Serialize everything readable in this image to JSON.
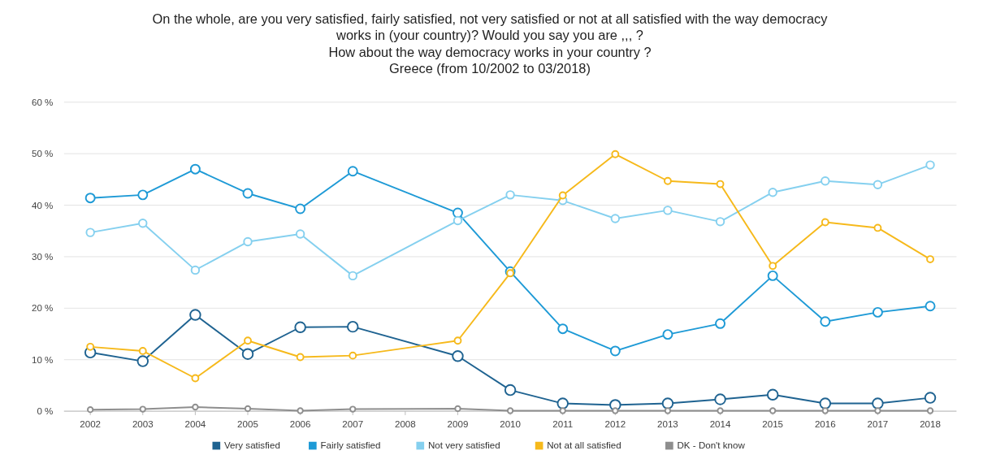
{
  "chart_data": {
    "type": "line",
    "title": "On the whole, are you very satisfied, fairly satisfied, not very satisfied or not at all satisfied with the way democracy\nworks in (your country)? Would you say you are ,,, ?\nHow about the way democracy works in your country ?",
    "subtitle": "Greece (from 10/2002 to 03/2018)",
    "x": [
      2002,
      2003,
      2004,
      2005,
      2006,
      2007,
      2009,
      2010,
      2011,
      2012,
      2013,
      2014,
      2015,
      2016,
      2017,
      2018
    ],
    "xlim": [
      2001.5,
      2018.5
    ],
    "xticks": [
      2002,
      2003,
      2004,
      2005,
      2006,
      2007,
      2008,
      2009,
      2010,
      2011,
      2012,
      2013,
      2014,
      2015,
      2016,
      2017,
      2018
    ],
    "ylim": [
      0,
      60
    ],
    "yticks": [
      {
        "value": 0,
        "label": "0 %"
      },
      {
        "value": 10,
        "label": "10 %"
      },
      {
        "value": 20,
        "label": "20 %"
      },
      {
        "value": 30,
        "label": "30 %"
      },
      {
        "value": 40,
        "label": "40 %"
      },
      {
        "value": 50,
        "label": "50 %"
      },
      {
        "value": 60,
        "label": "60 %"
      }
    ],
    "grid": "y",
    "legend": "bottom",
    "marker": "circle",
    "line_style": "solid",
    "series": [
      {
        "name": "Very satisfied",
        "color": "#1f6391",
        "values": [
          11.4,
          9.7,
          18.7,
          11.1,
          16.3,
          16.4,
          10.7,
          4.1,
          1.5,
          1.2,
          1.5,
          2.3,
          3.2,
          1.5,
          1.5,
          2.6
        ]
      },
      {
        "name": "Fairly satisfied",
        "color": "#1e9ad6",
        "values": [
          41.4,
          42.0,
          47.0,
          42.3,
          39.3,
          46.6,
          38.5,
          27.1,
          16.0,
          11.7,
          14.9,
          17.0,
          26.3,
          17.4,
          19.2,
          20.4
        ]
      },
      {
        "name": "Not very satisfied",
        "color": "#85d0ef",
        "values": [
          34.7,
          36.5,
          27.4,
          32.9,
          34.4,
          26.3,
          37.0,
          42.0,
          40.9,
          37.4,
          39.0,
          36.8,
          42.5,
          44.7,
          44.0,
          47.8
        ]
      },
      {
        "name": "Not at all satisfied",
        "color": "#f6b91b",
        "values": [
          12.5,
          11.7,
          6.4,
          13.7,
          10.5,
          10.8,
          13.7,
          26.8,
          41.9,
          49.9,
          44.7,
          44.1,
          28.2,
          36.7,
          35.6,
          29.5
        ]
      },
      {
        "name": "DK - Don't know",
        "color": "#8e8e8e",
        "values": [
          0.3,
          0.4,
          0.8,
          0.5,
          0.1,
          0.4,
          0.5,
          0.1,
          0.1,
          0.1,
          0.1,
          0.1,
          0.1,
          0.1,
          0.1,
          0.1
        ]
      }
    ]
  }
}
